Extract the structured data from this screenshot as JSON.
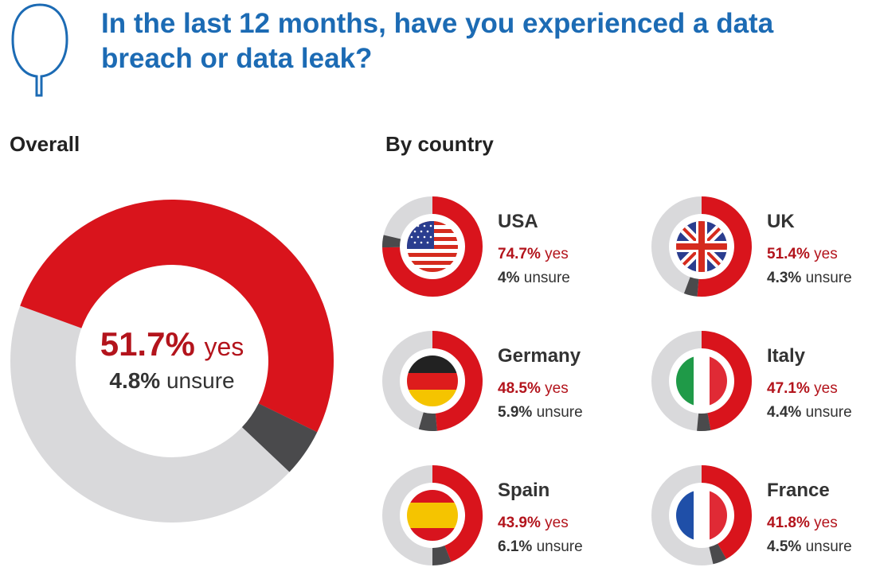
{
  "title": "In the last 12 months, have you experienced a data breach or data leak?",
  "colors": {
    "accent": "#1c6bb4",
    "yes": "#d9141c",
    "unsure": "#4a4a4c",
    "no": "#d9d9db"
  },
  "chart_data": [
    {
      "type": "pie",
      "title": "Overall",
      "segments": [
        {
          "label": "yes",
          "value": 51.7
        },
        {
          "label": "unsure",
          "value": 4.8
        }
      ],
      "yes_label": "51.7%",
      "yes_word": "yes",
      "unsure_label": "4.8%",
      "unsure_word": "unsure"
    },
    {
      "type": "pie",
      "title": "By country",
      "countries": [
        {
          "name": "USA",
          "yes": 74.7,
          "unsure": 4,
          "yes_text": "74.7%",
          "unsure_text": "4%",
          "flag": "us-flag-icon"
        },
        {
          "name": "UK",
          "yes": 51.4,
          "unsure": 4.3,
          "yes_text": "51.4%",
          "unsure_text": "4.3%",
          "flag": "uk-flag-icon"
        },
        {
          "name": "Germany",
          "yes": 48.5,
          "unsure": 5.9,
          "yes_text": "48.5%",
          "unsure_text": "5.9%",
          "flag": "germany-flag-icon"
        },
        {
          "name": "Italy",
          "yes": 47.1,
          "unsure": 4.4,
          "yes_text": "47.1%",
          "unsure_text": "4.4%",
          "flag": "italy-flag-icon"
        },
        {
          "name": "Spain",
          "yes": 43.9,
          "unsure": 6.1,
          "yes_text": "43.9%",
          "unsure_text": "6.1%",
          "flag": "spain-flag-icon"
        },
        {
          "name": "France",
          "yes": 41.8,
          "unsure": 4.5,
          "yes_text": "41.8%",
          "unsure_text": "4.5%",
          "flag": "france-flag-icon"
        }
      ],
      "yes_word": "yes",
      "unsure_word": "unsure"
    }
  ]
}
